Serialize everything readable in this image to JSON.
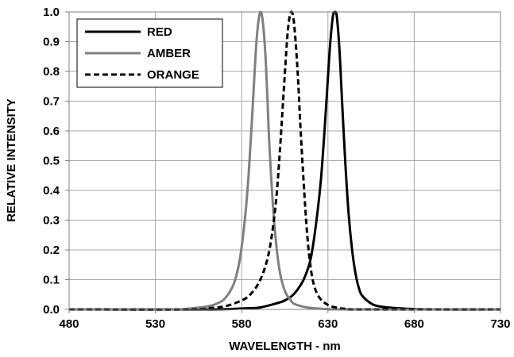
{
  "chart_data": {
    "type": "line",
    "xlabel": "WAVELENGTH - nm",
    "ylabel": "RELATIVE INTENSITY",
    "xlim": [
      480,
      730
    ],
    "ylim": [
      0,
      1.0
    ],
    "x_ticks": [
      "480",
      "530",
      "580",
      "630",
      "680",
      "730"
    ],
    "y_ticks": [
      "0.0",
      "0.1",
      "0.2",
      "0.3",
      "0.4",
      "0.5",
      "0.6",
      "0.7",
      "0.8",
      "0.9",
      "1.0"
    ],
    "grid": true,
    "legend_position": "top-left",
    "series": [
      {
        "name": "RED",
        "color": "#000000",
        "style": "solid",
        "x": [
          480,
          560,
          580,
          590,
          600,
          605,
          610,
          615,
          618,
          620,
          622,
          624,
          626,
          628,
          630,
          631,
          632,
          633,
          634,
          635,
          636,
          637,
          638,
          640,
          642,
          644,
          646,
          648,
          650,
          655,
          660,
          670,
          690,
          730
        ],
        "y": [
          0.0,
          0.0,
          0.003,
          0.006,
          0.02,
          0.03,
          0.05,
          0.09,
          0.13,
          0.17,
          0.24,
          0.33,
          0.44,
          0.6,
          0.78,
          0.87,
          0.94,
          0.99,
          1.0,
          0.99,
          0.93,
          0.84,
          0.72,
          0.5,
          0.32,
          0.2,
          0.12,
          0.07,
          0.045,
          0.02,
          0.01,
          0.004,
          0.0,
          0.0
        ]
      },
      {
        "name": "AMBER",
        "color": "#808080",
        "style": "solid",
        "x": [
          480,
          540,
          550,
          560,
          565,
          570,
          575,
          578,
          580,
          582,
          584,
          586,
          588,
          589,
          590,
          591,
          592,
          593,
          594,
          595,
          596,
          598,
          600,
          602,
          604,
          606,
          608,
          610,
          615,
          620,
          630,
          640,
          730
        ],
        "y": [
          0.0,
          0.0,
          0.003,
          0.01,
          0.018,
          0.035,
          0.08,
          0.14,
          0.21,
          0.31,
          0.45,
          0.64,
          0.85,
          0.93,
          0.98,
          1.0,
          0.98,
          0.92,
          0.83,
          0.7,
          0.56,
          0.36,
          0.22,
          0.13,
          0.08,
          0.05,
          0.035,
          0.02,
          0.01,
          0.005,
          0.001,
          0.0,
          0.0
        ]
      },
      {
        "name": "ORANGE",
        "color": "#000000",
        "style": "dashed",
        "x": [
          480,
          550,
          560,
          570,
          580,
          585,
          590,
          594,
          597,
          600,
          602,
          604,
          606,
          607,
          608,
          609,
          610,
          611,
          612,
          613,
          614,
          616,
          618,
          620,
          622,
          625,
          630,
          635,
          640,
          650,
          730
        ],
        "y": [
          0.0,
          0.0,
          0.004,
          0.01,
          0.03,
          0.05,
          0.09,
          0.15,
          0.23,
          0.37,
          0.52,
          0.7,
          0.88,
          0.95,
          0.99,
          1.0,
          0.98,
          0.92,
          0.84,
          0.74,
          0.62,
          0.42,
          0.25,
          0.14,
          0.08,
          0.04,
          0.015,
          0.006,
          0.002,
          0.0,
          0.0
        ]
      }
    ]
  }
}
